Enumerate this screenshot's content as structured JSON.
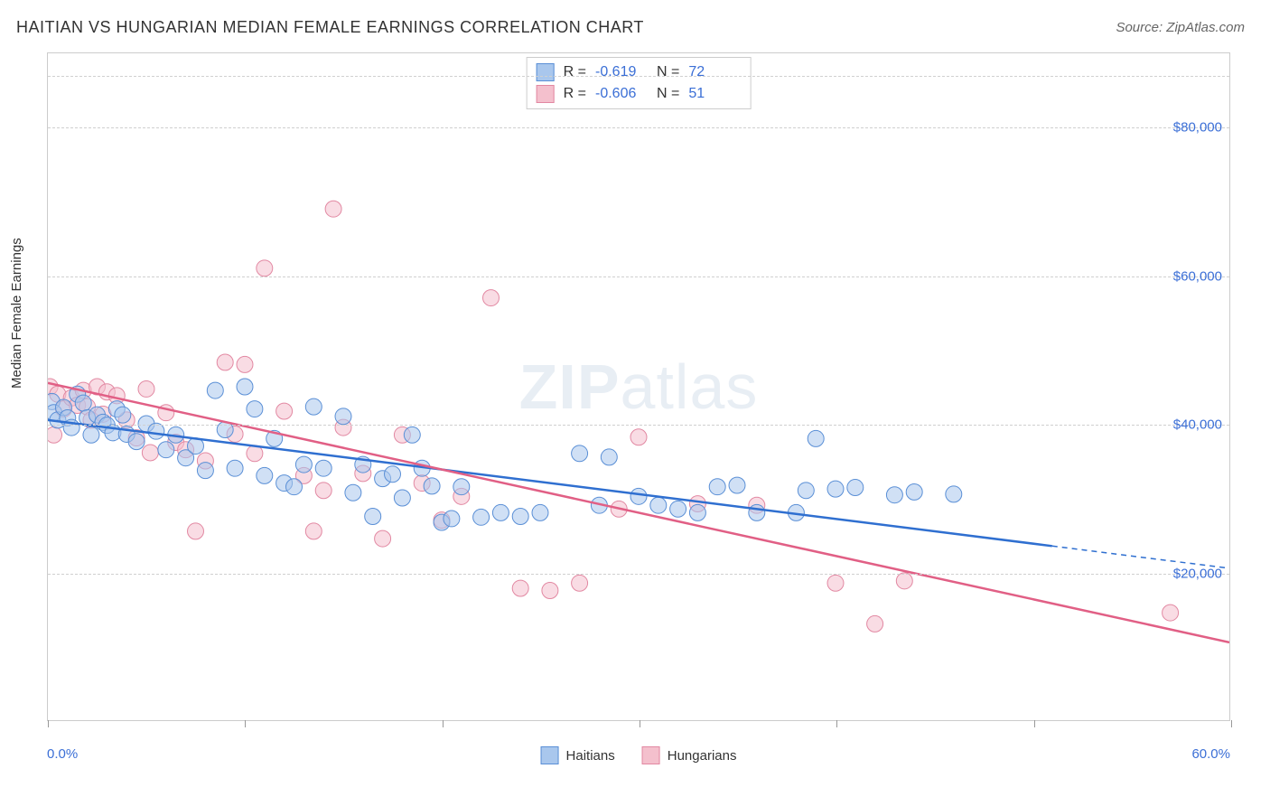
{
  "header": {
    "title": "HAITIAN VS HUNGARIAN MEDIAN FEMALE EARNINGS CORRELATION CHART",
    "source": "Source: ZipAtlas.com"
  },
  "chart": {
    "type": "scatter",
    "ylabel": "Median Female Earnings",
    "watermark": {
      "prefix": "ZIP",
      "suffix": "atlas"
    },
    "xlim": [
      0,
      60
    ],
    "ylim": [
      0,
      90000
    ],
    "xtick_positions": [
      0,
      10,
      20,
      30,
      40,
      50,
      60
    ],
    "xaxis_labels": {
      "min": "0.0%",
      "max": "60.0%"
    },
    "ytick_positions": [
      20000,
      40000,
      60000,
      80000
    ],
    "ytick_labels": [
      "$20,000",
      "$40,000",
      "$60,000",
      "$80,000"
    ],
    "grid_color": "#d0d0d0",
    "top_gridline_position": 87000,
    "background_color": "#ffffff",
    "marker_radius": 9,
    "marker_opacity": 0.55,
    "line_width": 2.5,
    "series": [
      {
        "name": "Haitians",
        "color_fill": "#a9c7ed",
        "color_stroke": "#5a8fd6",
        "line_color": "#2f6fd0",
        "R": "-0.619",
        "N": "72",
        "regression": {
          "x1": 0,
          "y1": 40500,
          "x2": 51,
          "y2": 23500,
          "dash_to_x": 60,
          "dash_to_y": 20500
        },
        "points": [
          [
            0.2,
            43000
          ],
          [
            0.3,
            41500
          ],
          [
            0.5,
            40500
          ],
          [
            0.8,
            42200
          ],
          [
            1.0,
            40800
          ],
          [
            1.2,
            39500
          ],
          [
            1.5,
            44000
          ],
          [
            1.8,
            42800
          ],
          [
            2.0,
            40800
          ],
          [
            2.2,
            38500
          ],
          [
            2.5,
            41200
          ],
          [
            2.8,
            40200
          ],
          [
            3.0,
            39800
          ],
          [
            3.3,
            38800
          ],
          [
            3.5,
            42000
          ],
          [
            3.8,
            41200
          ],
          [
            4.0,
            38600
          ],
          [
            4.5,
            37600
          ],
          [
            5.0,
            40000
          ],
          [
            5.5,
            39000
          ],
          [
            6.0,
            36500
          ],
          [
            6.5,
            38500
          ],
          [
            7.0,
            35400
          ],
          [
            7.5,
            37000
          ],
          [
            8.0,
            33700
          ],
          [
            8.5,
            44500
          ],
          [
            9.0,
            39200
          ],
          [
            9.5,
            34000
          ],
          [
            10.0,
            45000
          ],
          [
            10.5,
            42000
          ],
          [
            11.0,
            33000
          ],
          [
            11.5,
            38000
          ],
          [
            12.0,
            32000
          ],
          [
            12.5,
            31500
          ],
          [
            13.0,
            34500
          ],
          [
            13.5,
            42300
          ],
          [
            14.0,
            34000
          ],
          [
            15.0,
            41000
          ],
          [
            15.5,
            30700
          ],
          [
            16.0,
            34500
          ],
          [
            16.5,
            27500
          ],
          [
            17.0,
            32600
          ],
          [
            17.5,
            33200
          ],
          [
            18.0,
            30000
          ],
          [
            18.5,
            38500
          ],
          [
            19.0,
            34000
          ],
          [
            19.5,
            31600
          ],
          [
            20.0,
            26700
          ],
          [
            20.5,
            27200
          ],
          [
            21.0,
            31500
          ],
          [
            22.0,
            27400
          ],
          [
            23.0,
            28000
          ],
          [
            24.0,
            27500
          ],
          [
            25.0,
            28000
          ],
          [
            27.0,
            36000
          ],
          [
            28.0,
            29000
          ],
          [
            28.5,
            35500
          ],
          [
            30.0,
            30200
          ],
          [
            31.0,
            29000
          ],
          [
            32.0,
            28500
          ],
          [
            33.0,
            28000
          ],
          [
            34.0,
            31500
          ],
          [
            35.0,
            31700
          ],
          [
            36.0,
            28000
          ],
          [
            38.0,
            28000
          ],
          [
            38.5,
            31000
          ],
          [
            39.0,
            38000
          ],
          [
            40.0,
            31200
          ],
          [
            41.0,
            31400
          ],
          [
            43.0,
            30400
          ],
          [
            44.0,
            30800
          ],
          [
            46.0,
            30500
          ]
        ]
      },
      {
        "name": "Hungarians",
        "color_fill": "#f4c0cd",
        "color_stroke": "#e288a2",
        "line_color": "#e15f85",
        "R": "-0.606",
        "N": "51",
        "regression": {
          "x1": 0,
          "y1": 45500,
          "x2": 60,
          "y2": 10500
        },
        "points": [
          [
            0.1,
            45000
          ],
          [
            0.3,
            38500
          ],
          [
            0.5,
            44000
          ],
          [
            0.8,
            42000
          ],
          [
            1.2,
            43500
          ],
          [
            1.5,
            42500
          ],
          [
            1.8,
            44500
          ],
          [
            2.0,
            42300
          ],
          [
            2.2,
            40500
          ],
          [
            2.5,
            45000
          ],
          [
            2.8,
            41300
          ],
          [
            3.0,
            44300
          ],
          [
            3.5,
            43800
          ],
          [
            4.0,
            40500
          ],
          [
            4.5,
            38100
          ],
          [
            5.0,
            44700
          ],
          [
            5.2,
            36100
          ],
          [
            6.0,
            41500
          ],
          [
            6.5,
            37500
          ],
          [
            7.0,
            36500
          ],
          [
            7.5,
            25500
          ],
          [
            8.0,
            35000
          ],
          [
            9.0,
            48300
          ],
          [
            9.5,
            38600
          ],
          [
            10.0,
            48000
          ],
          [
            10.5,
            36000
          ],
          [
            11.0,
            61000
          ],
          [
            12.0,
            41700
          ],
          [
            13.0,
            33000
          ],
          [
            13.5,
            25500
          ],
          [
            14.0,
            31000
          ],
          [
            14.5,
            69000
          ],
          [
            15.0,
            39500
          ],
          [
            16.0,
            33300
          ],
          [
            17.0,
            24500
          ],
          [
            18.0,
            38500
          ],
          [
            19.0,
            32000
          ],
          [
            20.0,
            27000
          ],
          [
            21.0,
            30200
          ],
          [
            22.5,
            57000
          ],
          [
            24.0,
            17800
          ],
          [
            25.5,
            17500
          ],
          [
            27.0,
            18500
          ],
          [
            29.0,
            28500
          ],
          [
            30.0,
            38200
          ],
          [
            33.0,
            29200
          ],
          [
            36.0,
            29000
          ],
          [
            40.0,
            18500
          ],
          [
            42.0,
            13000
          ],
          [
            43.5,
            18800
          ],
          [
            57.0,
            14500
          ]
        ]
      }
    ],
    "bottom_legend": [
      {
        "label": "Haitians",
        "fill": "#a9c7ed",
        "stroke": "#5a8fd6"
      },
      {
        "label": "Hungarians",
        "fill": "#f4c0cd",
        "stroke": "#e288a2"
      }
    ]
  }
}
